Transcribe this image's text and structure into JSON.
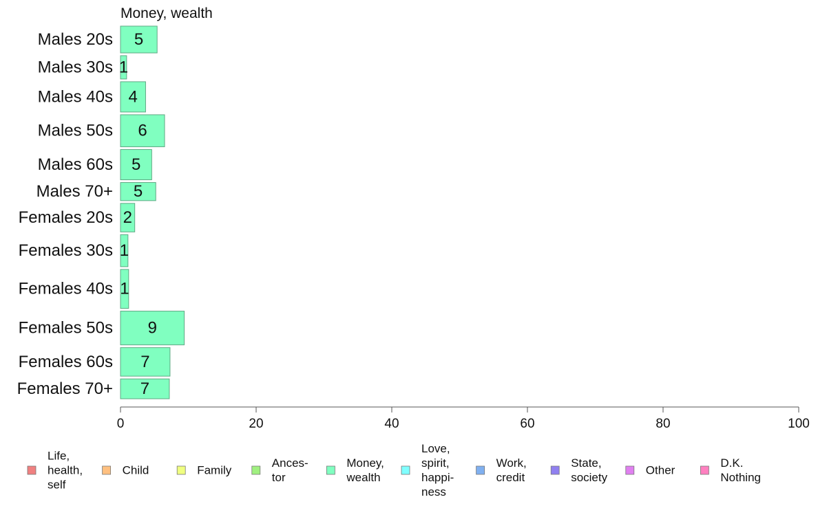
{
  "chart_data": {
    "type": "bar",
    "orientation": "horizontal",
    "title": "Money, wealth",
    "categories": [
      "Males 20s",
      "Males 30s",
      "Males 40s",
      "Males 50s",
      "Males 60s",
      "Males 70+",
      "Females 20s",
      "Females 30s",
      "Females 40s",
      "Females 50s",
      "Females 60s",
      "Females 70+"
    ],
    "series": [
      {
        "name": "Money, wealth",
        "values": [
          5.4,
          0.9,
          3.7,
          6.5,
          4.6,
          5.2,
          2.1,
          1.1,
          1.2,
          9.4,
          7.3,
          7.2
        ],
        "labels": [
          "5",
          "1",
          "4",
          "6",
          "5",
          "5",
          "2",
          "1",
          "1",
          "9",
          "7",
          "7"
        ]
      }
    ],
    "bar_weights": [
      0.85,
      0.75,
      0.95,
      1.0,
      0.95,
      0.6,
      0.9,
      1.0,
      1.2,
      1.05,
      0.9,
      0.65
    ],
    "xlim": [
      0,
      100
    ],
    "xticks": [
      0,
      20,
      40,
      60,
      80,
      100
    ],
    "grid": false,
    "legend": {
      "position": "bottom",
      "items": [
        {
          "label": "Life, health, self",
          "lines": [
            "Life,",
            "health,",
            "self"
          ],
          "color": "#f08080"
        },
        {
          "label": "Child",
          "lines": [
            "Child"
          ],
          "color": "#ffc080"
        },
        {
          "label": "Family",
          "lines": [
            "Family"
          ],
          "color": "#f0ff80"
        },
        {
          "label": "Ances-tor",
          "lines": [
            "Ances-",
            "tor"
          ],
          "color": "#a0f080"
        },
        {
          "label": "Money, wealth",
          "lines": [
            "Money,",
            "wealth"
          ],
          "color": "#80ffc0"
        },
        {
          "label": "Love, spirit, happi-ness",
          "lines": [
            "Love,",
            "spirit,",
            "happi-",
            "ness"
          ],
          "color": "#80ffff"
        },
        {
          "label": "Work, credit",
          "lines": [
            "Work,",
            "credit"
          ],
          "color": "#80b0f0"
        },
        {
          "label": "State, society",
          "lines": [
            "State,",
            "society"
          ],
          "color": "#9080f0"
        },
        {
          "label": "Other",
          "lines": [
            "Other"
          ],
          "color": "#e080f0"
        },
        {
          "label": "D.K. Nothing",
          "lines": [
            "D.K.",
            "Nothing"
          ],
          "color": "#ff80c0"
        }
      ]
    },
    "bar_color": "#80ffc0"
  }
}
